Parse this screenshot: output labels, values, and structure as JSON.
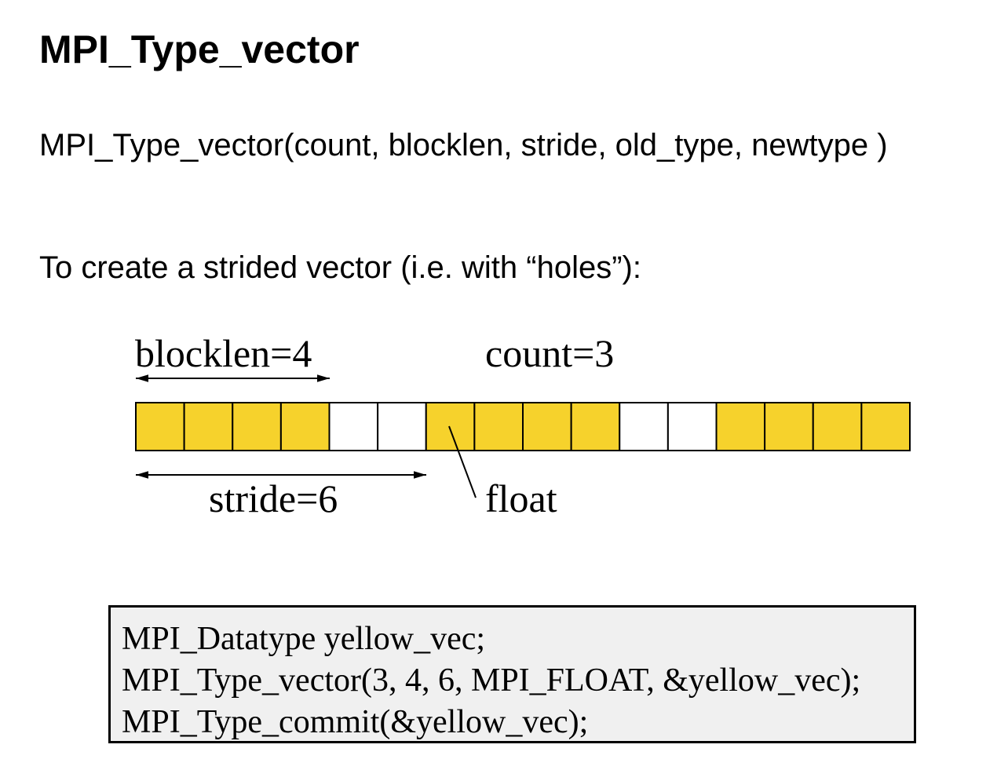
{
  "heading": "MPI_Type_vector",
  "signature": "MPI_Type_vector(count, blocklen, stride, old_type, newtype )",
  "intro": "To create a strided vector (i.e. with “holes”):",
  "diagram": {
    "blocklen_label": "blocklen=4",
    "count_label": "count=3",
    "stride_label": "stride=6",
    "element_label": "float",
    "count": 3,
    "blocklen": 4,
    "stride": 6,
    "filled_color": "#f6d22c",
    "empty_color": "#ffffff",
    "cells": [
      true,
      true,
      true,
      true,
      false,
      false,
      true,
      true,
      true,
      true,
      false,
      false,
      true,
      true,
      true,
      true
    ]
  },
  "code": {
    "lines": [
      "MPI_Datatype yellow_vec;",
      "MPI_Type_vector(3, 4, 6, MPI_FLOAT, &yellow_vec);",
      "MPI_Type_commit(&yellow_vec);"
    ]
  }
}
